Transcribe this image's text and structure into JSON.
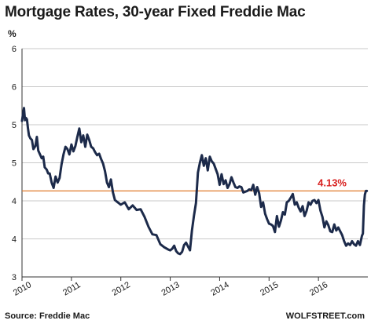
{
  "header": {
    "title": "Mortgage Rates, 30-year Fixed Freddie Mac"
  },
  "footer": {
    "source": "Source: Freddie Mac",
    "brand": "WOLFSTREET.com"
  },
  "colors": {
    "line": "#1c2a4a",
    "reference": "#e07a2a",
    "annotation": "#d8201f",
    "grid": "#c9c9c9",
    "text": "#1a1a1a"
  },
  "chart_data": {
    "type": "line",
    "title": "Mortgage Rates, 30-year Fixed Freddie Mac",
    "ylabel": "%",
    "ylim": [
      3,
      6
    ],
    "yticks": [
      3,
      3.5,
      4,
      4.5,
      5,
      5.5,
      6
    ],
    "ytick_labels": [
      "3",
      "4",
      "4",
      "5",
      "5",
      "6",
      "6"
    ],
    "xlim": [
      2010.0,
      2017.0
    ],
    "xticks": [
      2010,
      2011,
      2012,
      2013,
      2014,
      2015,
      2016
    ],
    "xtick_labels": [
      "2010",
      "2011",
      "2012",
      "2013",
      "2014",
      "2015",
      "2016"
    ],
    "grid": "horizontal",
    "reference_line": {
      "value": 4.13,
      "label": "4.13%"
    },
    "series": [
      {
        "x": [
          2010.0,
          2010.02,
          2010.04,
          2010.06,
          2010.08,
          2010.1,
          2010.12,
          2010.14,
          2010.17,
          2010.2,
          2010.23,
          2010.27,
          2010.3,
          2010.33,
          2010.37,
          2010.4,
          2010.43,
          2010.46,
          2010.5,
          2010.53,
          2010.56,
          2010.6,
          2010.64,
          2010.68,
          2010.72,
          2010.76,
          2010.8,
          2010.84,
          2010.88,
          2010.92,
          2010.96,
          2011.0,
          2011.04,
          2011.08,
          2011.12,
          2011.16,
          2011.2,
          2011.24,
          2011.28,
          2011.32,
          2011.36,
          2011.4,
          2011.44,
          2011.48,
          2011.52,
          2011.56,
          2011.6,
          2011.64,
          2011.68,
          2011.72,
          2011.76,
          2011.8,
          2011.84,
          2011.88,
          2011.92,
          2011.96,
          2012.0,
          2012.08,
          2012.16,
          2012.24,
          2012.32,
          2012.4,
          2012.48,
          2012.56,
          2012.64,
          2012.72,
          2012.8,
          2012.88,
          2012.96,
          2013.0,
          2013.04,
          2013.08,
          2013.12,
          2013.16,
          2013.2,
          2013.24,
          2013.28,
          2013.32,
          2013.36,
          2013.4,
          2013.44,
          2013.48,
          2013.52,
          2013.56,
          2013.6,
          2013.64,
          2013.68,
          2013.72,
          2013.76,
          2013.8,
          2013.84,
          2013.88,
          2013.92,
          2013.96,
          2014.0,
          2014.04,
          2014.08,
          2014.12,
          2014.16,
          2014.2,
          2014.24,
          2014.28,
          2014.32,
          2014.36,
          2014.4,
          2014.44,
          2014.48,
          2014.52,
          2014.56,
          2014.6,
          2014.64,
          2014.68,
          2014.72,
          2014.76,
          2014.8,
          2014.84,
          2014.88,
          2014.92,
          2014.96,
          2015.0,
          2015.04,
          2015.08,
          2015.12,
          2015.16,
          2015.2,
          2015.24,
          2015.28,
          2015.32,
          2015.36,
          2015.4,
          2015.44,
          2015.48,
          2015.52,
          2015.56,
          2015.6,
          2015.64,
          2015.68,
          2015.72,
          2015.76,
          2015.8,
          2015.84,
          2015.88,
          2015.92,
          2015.96,
          2016.0,
          2016.04,
          2016.08,
          2016.12,
          2016.16,
          2016.2,
          2016.24,
          2016.28,
          2016.32,
          2016.36,
          2016.4,
          2016.44,
          2016.48,
          2016.52,
          2016.56,
          2016.6,
          2016.64,
          2016.68,
          2016.72,
          2016.76,
          2016.8,
          2016.84,
          2016.88,
          2016.9,
          2016.92,
          2016.94,
          2016.96,
          2016.98
        ],
        "values": [
          5.05,
          5.14,
          5.22,
          5.06,
          5.09,
          5.07,
          4.96,
          4.86,
          4.82,
          4.8,
          4.68,
          4.72,
          4.84,
          4.66,
          4.6,
          4.56,
          4.58,
          4.44,
          4.41,
          4.36,
          4.36,
          4.24,
          4.17,
          4.32,
          4.24,
          4.3,
          4.48,
          4.61,
          4.71,
          4.68,
          4.61,
          4.74,
          4.65,
          4.72,
          4.84,
          4.95,
          4.77,
          4.86,
          4.71,
          4.87,
          4.8,
          4.71,
          4.69,
          4.64,
          4.6,
          4.62,
          4.55,
          4.49,
          4.39,
          4.24,
          4.18,
          4.28,
          4.11,
          4.01,
          3.99,
          3.97,
          3.95,
          3.98,
          3.89,
          3.94,
          3.88,
          3.89,
          3.79,
          3.66,
          3.56,
          3.55,
          3.43,
          3.39,
          3.36,
          3.35,
          3.37,
          3.41,
          3.34,
          3.31,
          3.3,
          3.33,
          3.42,
          3.45,
          3.4,
          3.35,
          3.61,
          3.8,
          3.97,
          4.37,
          4.5,
          4.6,
          4.46,
          4.56,
          4.4,
          4.58,
          4.52,
          4.49,
          4.42,
          4.35,
          4.21,
          4.35,
          4.22,
          4.27,
          4.17,
          4.22,
          4.31,
          4.24,
          4.18,
          4.17,
          4.19,
          4.18,
          4.11,
          4.12,
          4.13,
          4.15,
          4.14,
          4.21,
          4.08,
          4.18,
          4.1,
          3.92,
          3.98,
          3.83,
          3.76,
          3.7,
          3.69,
          3.67,
          3.59,
          3.8,
          3.66,
          3.74,
          3.85,
          3.82,
          3.98,
          4.0,
          4.04,
          4.09,
          3.95,
          3.98,
          3.91,
          3.86,
          3.93,
          3.8,
          3.87,
          3.98,
          3.95,
          4.0,
          4.01,
          3.97,
          4.01,
          3.87,
          3.79,
          3.65,
          3.73,
          3.68,
          3.6,
          3.59,
          3.69,
          3.61,
          3.65,
          3.6,
          3.55,
          3.47,
          3.41,
          3.44,
          3.42,
          3.47,
          3.43,
          3.41,
          3.47,
          3.42,
          3.54,
          3.57,
          3.94,
          4.08,
          4.13,
          4.13
        ]
      }
    ]
  }
}
